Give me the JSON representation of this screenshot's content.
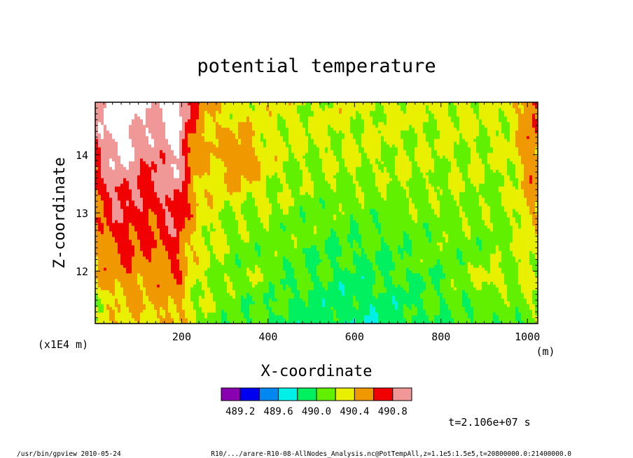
{
  "chart_data": {
    "type": "heatmap",
    "title": "potential temperature",
    "xlabel": "X-coordinate",
    "ylabel": "Z-coordinate",
    "x_unit": "(m)",
    "y_scale_label": "(x1E4 m)",
    "xlim": [
      0,
      1024
    ],
    "ylim": [
      11.1,
      14.9
    ],
    "x_ticks": [
      200,
      400,
      600,
      800,
      1000
    ],
    "y_ticks": [
      12,
      13,
      14
    ],
    "x_tick_labels": [
      "200",
      "400",
      "600",
      "800",
      "1000"
    ],
    "y_tick_labels": [
      "12",
      "13",
      "14"
    ],
    "levels": [
      489.0,
      489.2,
      489.4,
      489.6,
      489.8,
      490.0,
      490.2,
      490.4,
      490.6,
      490.8,
      491.0
    ],
    "colors": [
      "#8800b0",
      "#0000f0",
      "#0088f0",
      "#00f0e8",
      "#00f060",
      "#60f000",
      "#e8f000",
      "#f09800",
      "#f00000",
      "#f09898"
    ],
    "over_color": "#ffffff",
    "colorbar_labels": [
      "489.2",
      "489.6",
      "490.0",
      "490.4",
      "490.8"
    ],
    "annotation": "t=2.106e+07 s",
    "footer_left": "/usr/bin/gpview   2010-05-24",
    "footer_right": "R10/.../arare-R10-08-AllNodes_Analysis.nc@PotTempAll,z=1.1e5:1.5e5,t=20800000.0:21400000.0"
  }
}
